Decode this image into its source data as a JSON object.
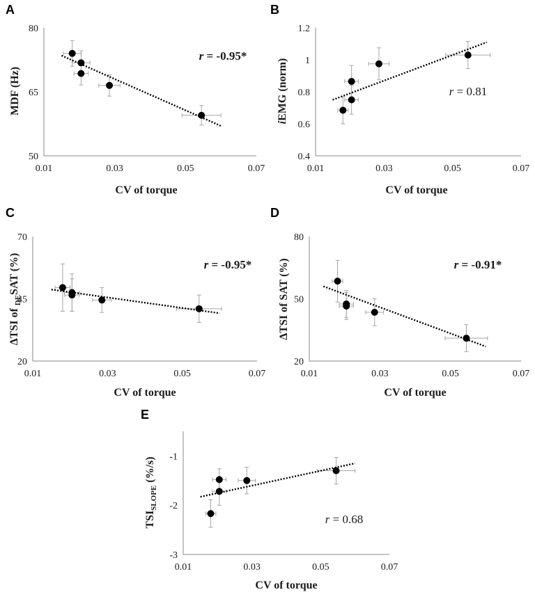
{
  "chart_data": [
    {
      "panel": "A",
      "type": "scatter",
      "xlabel": "CV of torque",
      "ylabel": "MDF (Hz)",
      "xlim": [
        0.01,
        0.07
      ],
      "ylim": [
        50,
        80
      ],
      "xticks": [
        "0.01",
        "0.03",
        "0.05",
        "0.07"
      ],
      "yticks": [
        "50",
        "65",
        "80"
      ],
      "annotation": "r = -0.95*",
      "annotation_r": "r",
      "annotation_value": " = -0.95*",
      "annotation_bold": true,
      "trend": {
        "x": [
          0.015,
          0.06
        ],
        "y": [
          73.5,
          57.0
        ]
      },
      "points": [
        {
          "x": 0.018,
          "y": 74.0,
          "xerr": 0.0025,
          "yerr": 3.0
        },
        {
          "x": 0.0205,
          "y": 71.8,
          "xerr": 0.0025,
          "yerr": 2.8
        },
        {
          "x": 0.0205,
          "y": 69.3,
          "xerr": 0.002,
          "yerr": 2.7
        },
        {
          "x": 0.0285,
          "y": 66.5,
          "xerr": 0.003,
          "yerr": 2.5
        },
        {
          "x": 0.0545,
          "y": 59.5,
          "xerr": 0.0055,
          "yerr": 2.3
        }
      ]
    },
    {
      "panel": "B",
      "type": "scatter",
      "xlabel": "CV of torque",
      "ylabel": "iEMG (norm)",
      "ylabel_italic": "i",
      "ylabel_rest": "EMG (norm)",
      "xlim": [
        0.01,
        0.07
      ],
      "ylim": [
        0.4,
        1.2
      ],
      "xticks": [
        "0.01",
        "0.03",
        "0.05",
        "0.07"
      ],
      "yticks": [
        "0.4",
        "0.6",
        "0.8",
        "1",
        "1.2"
      ],
      "annotation": "r = 0.81",
      "annotation_r": "r",
      "annotation_value": " = 0.81",
      "annotation_bold": false,
      "trend": {
        "x": [
          0.015,
          0.06
        ],
        "y": [
          0.75,
          1.11
        ]
      },
      "points": [
        {
          "x": 0.018,
          "y": 0.685,
          "xerr": 0.0015,
          "yerr": 0.085
        },
        {
          "x": 0.0205,
          "y": 0.865,
          "xerr": 0.002,
          "yerr": 0.1
        },
        {
          "x": 0.0205,
          "y": 0.75,
          "xerr": 0.002,
          "yerr": 0.09
        },
        {
          "x": 0.0285,
          "y": 0.975,
          "xerr": 0.003,
          "yerr": 0.1
        },
        {
          "x": 0.0545,
          "y": 1.03,
          "xerr": 0.0065,
          "yerr": 0.085
        }
      ]
    },
    {
      "panel": "C",
      "type": "scatter",
      "xlabel": "CV of torque",
      "ylabel": "ΔTSI of DESAT (%)",
      "ylabel_pre": "ΔTSI of ",
      "ylabel_sub": "DE",
      "ylabel_post": "SAT (%)",
      "xlim": [
        0.01,
        0.07
      ],
      "ylim": [
        20,
        70
      ],
      "xticks": [
        "0.01",
        "0.03",
        "0.05",
        "0.07"
      ],
      "yticks": [
        "20",
        "45",
        "70"
      ],
      "annotation": "r = -0.95*",
      "annotation_r": "r",
      "annotation_value": " = -0.95*",
      "annotation_bold": true,
      "trend": {
        "x": [
          0.015,
          0.06
        ],
        "y": [
          48.7,
          39.2
        ]
      },
      "points": [
        {
          "x": 0.018,
          "y": 49.5,
          "xerr": 0.002,
          "yerr": 9.5
        },
        {
          "x": 0.0205,
          "y": 47.5,
          "xerr": 0.002,
          "yerr": 7.5
        },
        {
          "x": 0.0205,
          "y": 46.5,
          "xerr": 0.002,
          "yerr": 6.5
        },
        {
          "x": 0.0285,
          "y": 44.5,
          "xerr": 0.0025,
          "yerr": 5.0
        },
        {
          "x": 0.0545,
          "y": 41.0,
          "xerr": 0.006,
          "yerr": 5.5
        }
      ]
    },
    {
      "panel": "D",
      "type": "scatter",
      "xlabel": "CV of torque",
      "ylabel": "ΔTSI of SAT (%)",
      "xlim": [
        0.01,
        0.07
      ],
      "ylim": [
        20,
        80
      ],
      "xticks": [
        "0.01",
        "0.03",
        "0.05",
        "0.07"
      ],
      "yticks": [
        "20",
        "50",
        "80"
      ],
      "annotation": "r = -0.91*",
      "annotation_r": "r",
      "annotation_value": " = -0.91*",
      "annotation_bold": true,
      "trend": {
        "x": [
          0.014,
          0.06
        ],
        "y": [
          56.0,
          27.0
        ]
      },
      "points": [
        {
          "x": 0.018,
          "y": 58.5,
          "xerr": 0.0015,
          "yerr": 10.0
        },
        {
          "x": 0.0205,
          "y": 47.5,
          "xerr": 0.002,
          "yerr": 6.5
        },
        {
          "x": 0.0205,
          "y": 46.5,
          "xerr": 0.002,
          "yerr": 6.5
        },
        {
          "x": 0.0285,
          "y": 43.5,
          "xerr": 0.0025,
          "yerr": 6.5
        },
        {
          "x": 0.0545,
          "y": 31.0,
          "xerr": 0.006,
          "yerr": 6.5
        }
      ]
    },
    {
      "panel": "E",
      "type": "scatter",
      "xlabel": "CV of torque",
      "ylabel": "TSISLOPE (%/s)",
      "ylabel_pre": "TSI",
      "ylabel_sub": "SLOPE",
      "ylabel_post": " (%/s)",
      "xlim": [
        0.01,
        0.07
      ],
      "ylim": [
        -3,
        -0.5
      ],
      "xticks": [
        "0.01",
        "0.03",
        "0.05",
        "0.07"
      ],
      "yticks": [
        "-3",
        "-2",
        "-1"
      ],
      "annotation": "r = 0.68",
      "annotation_r": "r",
      "annotation_value": " = 0.68",
      "annotation_bold": false,
      "trend": {
        "x": [
          0.015,
          0.06
        ],
        "y": [
          -1.83,
          -1.15
        ]
      },
      "points": [
        {
          "x": 0.018,
          "y": -2.17,
          "xerr": 0.0015,
          "yerr": 0.28
        },
        {
          "x": 0.0205,
          "y": -1.48,
          "xerr": 0.002,
          "yerr": 0.22
        },
        {
          "x": 0.0205,
          "y": -1.72,
          "xerr": 0.002,
          "yerr": 0.28
        },
        {
          "x": 0.0285,
          "y": -1.5,
          "xerr": 0.0025,
          "yerr": 0.27
        },
        {
          "x": 0.0545,
          "y": -1.3,
          "xerr": 0.0055,
          "yerr": 0.27
        }
      ]
    }
  ]
}
